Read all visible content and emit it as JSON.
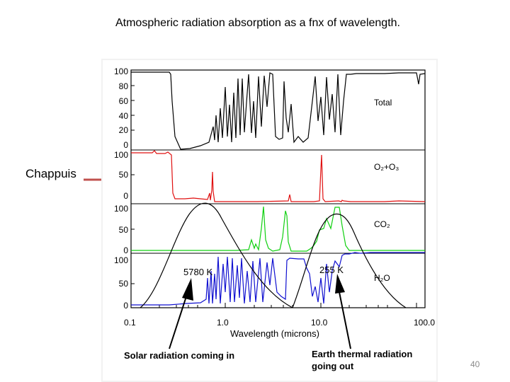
{
  "slide": {
    "title": "Atmospheric radiation absorption as a fnx of wavelength.",
    "chappuis_label": "Chappuis",
    "page_number": "40"
  },
  "figure": {
    "panels": [
      {
        "label": "Total",
        "ticks": [
          "100",
          "80",
          "60",
          "40",
          "20",
          "0"
        ],
        "color": "#000000"
      },
      {
        "label": "O₂+O₃",
        "ticks": [
          "100",
          "50",
          "0"
        ],
        "color": "#e01010"
      },
      {
        "label": "CO₂",
        "ticks": [
          "100",
          "50",
          "0"
        ],
        "color": "#10d010"
      },
      {
        "label": "H₂O",
        "ticks": [
          "100",
          "50",
          "0"
        ],
        "color": "#1010d0"
      }
    ],
    "x_ticks": [
      "0.1",
      "1.0",
      "10.0",
      "100.0"
    ],
    "x_axis_label": "Wavelength (microns)",
    "sun_temperature": "5780 K",
    "earth_temperature": "255 K",
    "annotation_solar": "Solar radiation coming in",
    "annotation_earth_line1": "Earth thermal radiation",
    "annotation_earth_line2": "going out"
  },
  "colors": {
    "arrow": "#c0504d",
    "total": "#000000",
    "o2o3": "#e01010",
    "co2": "#10d010",
    "h2o": "#1010d0",
    "page_number": "#8a8a8a"
  }
}
